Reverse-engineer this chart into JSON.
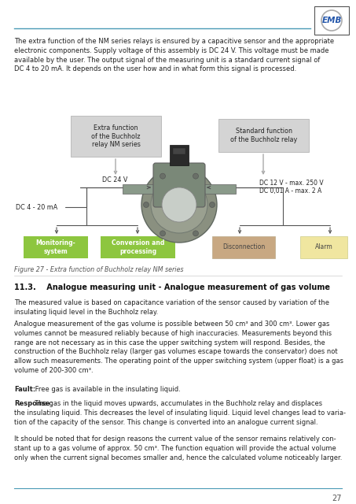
{
  "bg_color": "#ffffff",
  "top_line_color": "#4a9ab5",
  "intro_text": "The extra function of the NM series relays is ensured by a capacitive sensor and the appropriate\nelectronic components. Supply voltage of this assembly is DC 24 V. This voltage must be made\navailable by the user. The output signal of the measuring unit is a standard current signal of\nDC 4 to 20 mA. It depends on the user how and in what form this signal is processed.",
  "fig_caption": "Figure 27 - Extra function of Buchholz relay NM series",
  "section_title": "11.3.    Analogue measuring unit - Analogue measurement of gas volume",
  "para1": "The measured value is based on capacitance variation of the sensor caused by variation of the\ninsulating liquid level in the Buchholz relay.",
  "para2": "Analogue measurement of the gas volume is possible between 50 cm³ and 300 cm³. Lower gas\nvolumes cannot be measured reliably because of high inaccuracies. Measurements beyond this\nrange are not necessary as in this case the upper switching system will respond. Besides, the\nconstruction of the Buchholz relay (larger gas volumes escape towards the conservator) does not\nallow such measurements. The operating point of the upper switching system (upper float) is a gas\nvolume of 200-300 cm³.",
  "para3_bold": "Fault:",
  "para3_rest": " Free gas is available in the insulating liquid.",
  "para4_bold": "Response:",
  "para4_rest": " The gas in the liquid moves upwards, accumulates in the Buchholz relay and displaces\nthe insulating liquid. This decreases the level of insulating liquid. Liquid level changes lead to varia-\ntion of the capacity of the sensor. This change is converted into an analogue current signal.",
  "para5": "It should be noted that for design reasons the current value of the sensor remains relatively con-\nstant up to a gas volume of approx. 50 cm³. The function equation will provide the actual volume\nonly when the current signal becomes smaller and, hence the calculated volume noticeably larger.",
  "page_number": "27",
  "box_left1_color": "#8dc63f",
  "box_left1_text": "Monitoring-\nsystem",
  "box_left2_color": "#8dc63f",
  "box_left2_text": "Conversion and\nprocessing",
  "box_right1_color": "#c8a882",
  "box_right1_text": "Disconnection",
  "box_right2_color": "#f0e6a0",
  "box_right2_text": "Alarm",
  "label_extra_func": "Extra function\nof the Buchholz\nrelay NM series",
  "label_std_func": "Standard function\nof the Buchholz relay",
  "label_dc24v": "DC 24 V",
  "label_dc4_20ma": "DC 4 - 20 mA",
  "label_dc12v": "DC 12 V - max. 250 V\nDC 0,01 A - max. 2 A",
  "gray_box_color": "#d4d4d4",
  "arrow_color": "#aaaaaa",
  "line_color": "#555555"
}
